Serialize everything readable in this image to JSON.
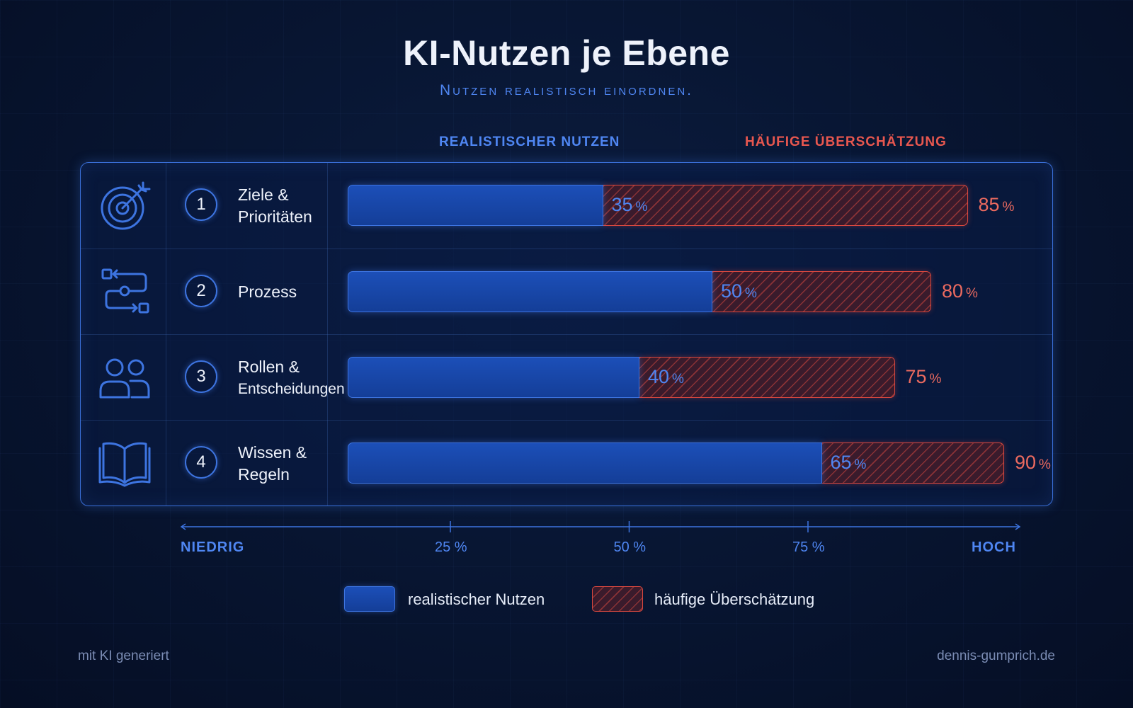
{
  "title": "KI-Nutzen je Ebene",
  "subtitle": "Nutzen realistisch einordnen.",
  "column_headers": {
    "real": "REALISTISCHER NUTZEN",
    "over": "HÄUFIGE ÜBERSCHÄTZUNG"
  },
  "colors": {
    "real": "#1c4fb8",
    "over": "#d9483f",
    "accent_blue": "#4f86f2",
    "accent_red": "#ec6a5f"
  },
  "chart_data": {
    "type": "bar",
    "orientation": "horizontal",
    "stacked": "overlay",
    "title": "KI-Nutzen je Ebene",
    "subtitle": "Nutzen realistisch einordnen.",
    "categories": [
      "Ziele & Prioritäten",
      "Prozess",
      "Rollen & Entscheidungen",
      "Wissen & Regeln"
    ],
    "series": [
      {
        "name": "realistischer Nutzen",
        "values": [
          35,
          50,
          40,
          65
        ]
      },
      {
        "name": "häufige Überschätzung",
        "values": [
          85,
          80,
          75,
          90
        ]
      }
    ],
    "xlim": [
      0,
      100
    ],
    "xticks": [
      {
        "value": 0,
        "label": "NIEDRIG"
      },
      {
        "value": 25,
        "label": "25 %"
      },
      {
        "value": 50,
        "label": "50 %"
      },
      {
        "value": 75,
        "label": "75 %"
      },
      {
        "value": 100,
        "label": "HOCH"
      }
    ],
    "legend_position": "bottom-center",
    "grid": false
  },
  "rows": [
    {
      "num": "1",
      "label_line1": "Ziele &",
      "label_line2": "Prioritäten",
      "icon": "target-icon",
      "real": 35,
      "over": 85
    },
    {
      "num": "2",
      "label_line1": "Prozess",
      "label_line2": "",
      "icon": "process-flow-icon",
      "real": 50,
      "over": 80
    },
    {
      "num": "3",
      "label_line1": "Rollen &",
      "label_line2": "Entscheidungen",
      "icon": "people-icon",
      "real": 40,
      "over": 75
    },
    {
      "num": "4",
      "label_line1": "Wissen &",
      "label_line2": "Regeln",
      "icon": "book-icon",
      "real": 65,
      "over": 90
    }
  ],
  "value_unit": "%",
  "legend": {
    "real": "realistischer Nutzen",
    "over": "häufige Überschätzung"
  },
  "footer": {
    "left": "mit KI generiert",
    "right": "dennis-gumprich.de"
  }
}
